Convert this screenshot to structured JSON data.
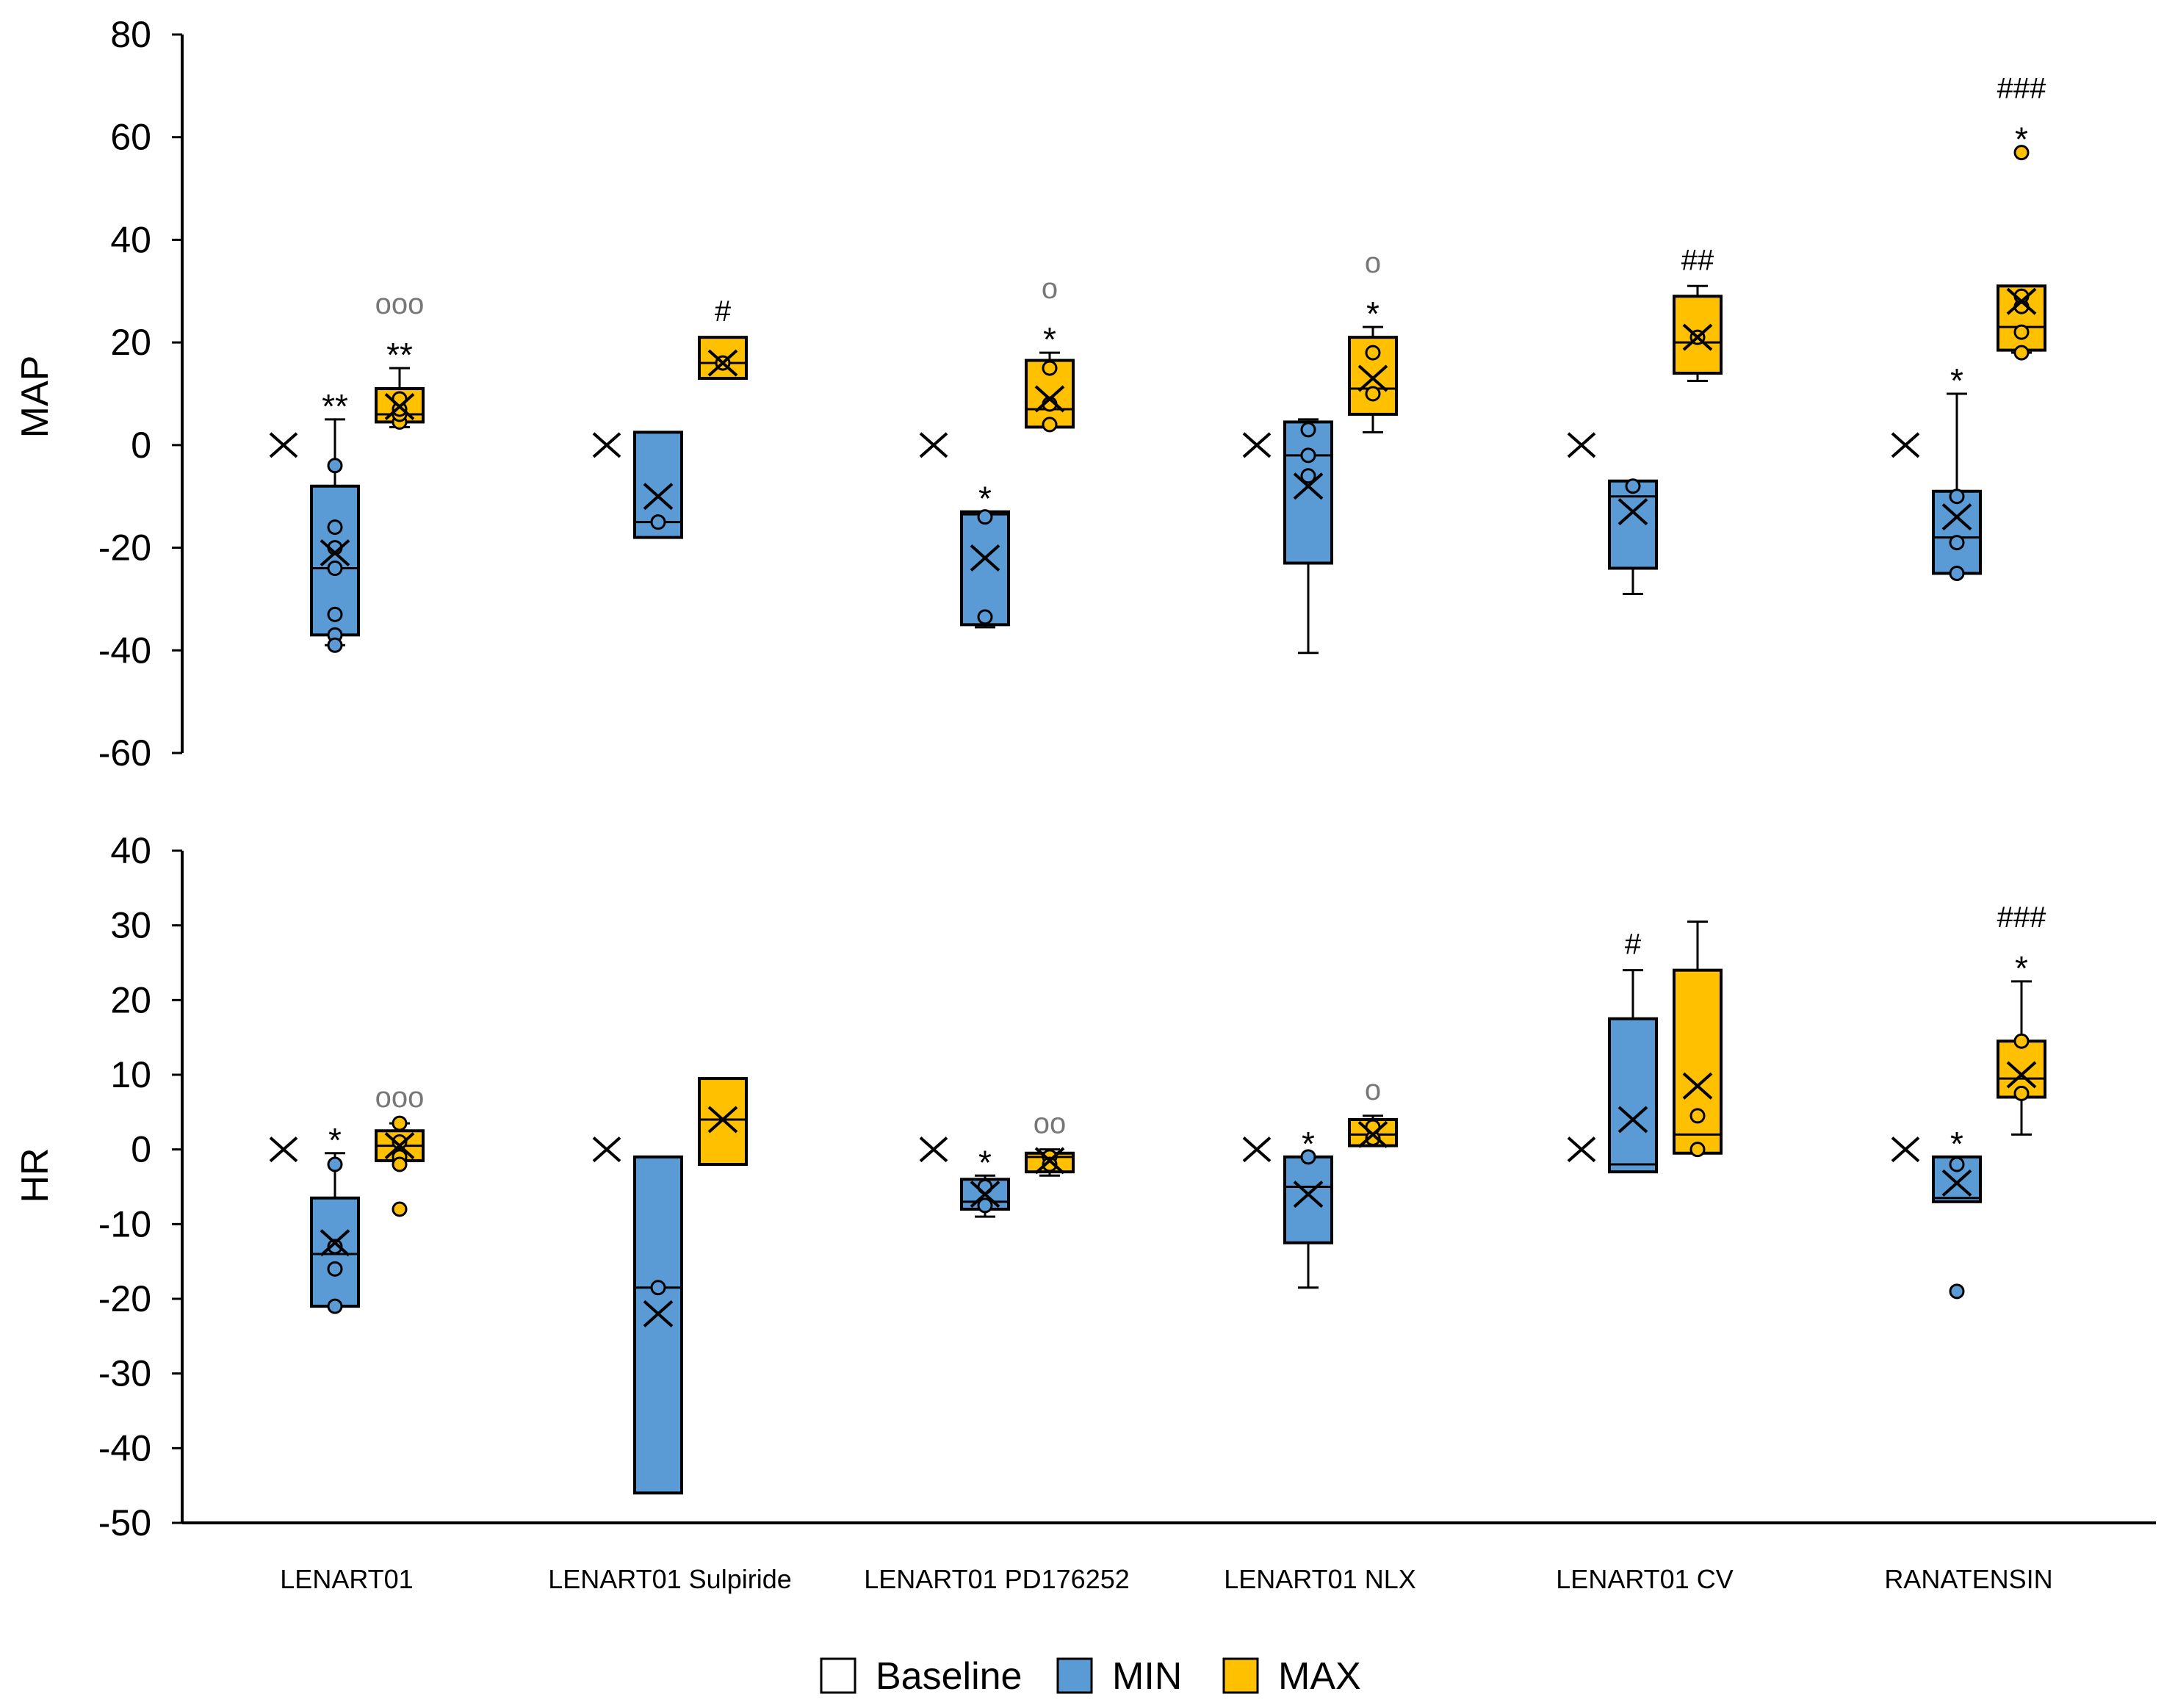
{
  "chart_data": {
    "type": "box",
    "categories": [
      "LENART01",
      "LENART01 Sulpiride",
      "LENART01 PD176252",
      "LENART01 NLX",
      "LENART01 CV",
      "RANATENSIN"
    ],
    "legend": [
      {
        "name": "Baseline",
        "color": "#ffffff"
      },
      {
        "name": "MIN",
        "color": "#5b9bd5"
      },
      {
        "name": "MAX",
        "color": "#ffc000"
      }
    ],
    "legend_position": "bottom",
    "colors": {
      "Baseline": "#ffffff",
      "MIN": "#5b9bd5",
      "MAX": "#ffc000",
      "outline": "#000000",
      "annotation_circle": "#777777"
    },
    "panels": [
      {
        "ylabel": "MAP",
        "ylim": [
          -60,
          80
        ],
        "yticks": [
          "80",
          "60",
          "40",
          "20",
          "0",
          "-20",
          "-40",
          "-60"
        ],
        "groups": [
          {
            "category": "LENART01",
            "Baseline": {
              "mean": 0
            },
            "MIN": {
              "q1": -37,
              "median": -24,
              "q3": -8,
              "wlo": -39,
              "whi": 5,
              "mean": -21,
              "points": [
                -4,
                -16,
                -20,
                -24,
                -33,
                -37,
                -39
              ]
            },
            "MAX": {
              "q1": 4.5,
              "median": 6,
              "q3": 11,
              "wlo": 3.5,
              "whi": 15,
              "mean": 7.5,
              "points": [
                4.5,
                6,
                7,
                9
              ]
            },
            "labels": {
              "MIN": [
                "**"
              ],
              "MAX": [
                "ooo",
                "**"
              ]
            }
          },
          {
            "category": "LENART01 Sulpiride",
            "Baseline": {
              "mean": 0
            },
            "MIN": {
              "q1": -18,
              "median": -15,
              "q3": 2.5,
              "wlo": -18,
              "whi": 2.5,
              "mean": -10,
              "points": [
                -15
              ]
            },
            "MAX": {
              "q1": 13,
              "median": 16,
              "q3": 21,
              "wlo": 13,
              "whi": 21,
              "mean": 16,
              "points": [
                16
              ]
            },
            "labels": {
              "MIN": [],
              "MAX": [
                "#"
              ]
            }
          },
          {
            "category": "LENART01 PD176252",
            "Baseline": {
              "mean": 0
            },
            "MIN": {
              "q1": -35,
              "median": -13.5,
              "q3": -13,
              "wlo": -35.5,
              "whi": -13,
              "mean": -22,
              "points": [
                -14,
                -33.5
              ]
            },
            "MAX": {
              "q1": 3.5,
              "median": 7,
              "q3": 16.5,
              "wlo": 3.5,
              "whi": 18,
              "mean": 9,
              "points": [
                4,
                8,
                15
              ]
            },
            "labels": {
              "MIN": [
                "*"
              ],
              "MAX": [
                "o",
                "*"
              ]
            }
          },
          {
            "category": "LENART01 NLX",
            "Baseline": {
              "mean": 0
            },
            "MIN": {
              "q1": -23,
              "median": -2,
              "q3": 4.5,
              "wlo": -40.5,
              "whi": 5,
              "mean": -8,
              "points": [
                -2,
                3,
                -6
              ]
            },
            "MAX": {
              "q1": 6,
              "median": 11,
              "q3": 21,
              "wlo": 2.5,
              "whi": 23,
              "mean": 13,
              "points": [
                10,
                18
              ]
            },
            "labels": {
              "MIN": [],
              "MAX": [
                "o",
                "*"
              ]
            }
          },
          {
            "category": "LENART01 CV",
            "Baseline": {
              "mean": 0
            },
            "MIN": {
              "q1": -24,
              "median": -10,
              "q3": -7,
              "wlo": -29,
              "whi": -7,
              "mean": -13,
              "points": [
                -8
              ]
            },
            "MAX": {
              "q1": 14,
              "median": 20,
              "q3": 29,
              "wlo": 12.5,
              "whi": 31,
              "mean": 21,
              "points": [
                21
              ]
            },
            "labels": {
              "MIN": [],
              "MAX": [
                "##"
              ]
            }
          },
          {
            "category": "RANATENSIN",
            "Baseline": {
              "mean": 0
            },
            "MIN": {
              "q1": -25,
              "median": -18,
              "q3": -9,
              "wlo": -25,
              "whi": 10,
              "mean": -14,
              "points": [
                -10,
                -19,
                -25
              ]
            },
            "MAX": {
              "q1": 18.5,
              "median": 23,
              "q3": 31,
              "wlo": 18,
              "whi": 31,
              "mean": 28,
              "points": [
                18,
                22,
                27,
                29,
                57
              ]
            },
            "labels": {
              "MIN": [
                "*"
              ],
              "MAX": [
                "###",
                "*"
              ]
            }
          }
        ]
      },
      {
        "ylabel": "HR",
        "ylim": [
          -50,
          40
        ],
        "yticks": [
          "40",
          "30",
          "20",
          "10",
          "0",
          "-10",
          "-20",
          "-30",
          "-40",
          "-50"
        ],
        "groups": [
          {
            "category": "LENART01",
            "Baseline": {
              "mean": 0
            },
            "MIN": {
              "q1": -21,
              "median": -14,
              "q3": -6.5,
              "wlo": -21,
              "whi": -0.5,
              "mean": -12.5,
              "points": [
                -2,
                -13,
                -16,
                -21
              ]
            },
            "MAX": {
              "q1": -1.5,
              "median": 0.5,
              "q3": 2.5,
              "wlo": -1.5,
              "whi": 3.5,
              "mean": 0.5,
              "points": [
                3.5,
                1,
                -1,
                -2,
                -8
              ]
            },
            "labels": {
              "MIN": [
                "*"
              ],
              "MAX": [
                "ooo"
              ]
            }
          },
          {
            "category": "LENART01 Sulpiride",
            "Baseline": {
              "mean": 0
            },
            "MIN": {
              "q1": -46,
              "median": -18.5,
              "q3": -1,
              "wlo": -46,
              "whi": -1,
              "mean": -22,
              "points": [
                -18.5
              ]
            },
            "MAX": {
              "q1": -2,
              "median": 4,
              "q3": 9.5,
              "wlo": -2,
              "whi": 9.5,
              "mean": 4,
              "points": []
            },
            "labels": {
              "MIN": [],
              "MAX": []
            }
          },
          {
            "category": "LENART01 PD176252",
            "Baseline": {
              "mean": 0
            },
            "MIN": {
              "q1": -8,
              "median": -7,
              "q3": -4,
              "wlo": -9,
              "whi": -3.5,
              "mean": -6,
              "points": [
                -5,
                -7.5
              ]
            },
            "MAX": {
              "q1": -3,
              "median": -1,
              "q3": -0.5,
              "wlo": -3.5,
              "whi": 0,
              "mean": -1.5,
              "points": [
                -1,
                -2
              ]
            },
            "labels": {
              "MIN": [
                "*"
              ],
              "MAX": [
                "oo"
              ]
            }
          },
          {
            "category": "LENART01 NLX",
            "Baseline": {
              "mean": 0
            },
            "MIN": {
              "q1": -12.5,
              "median": -5,
              "q3": -1,
              "wlo": -18.5,
              "whi": -1,
              "mean": -6,
              "points": [
                -1
              ]
            },
            "MAX": {
              "q1": 0.5,
              "median": 2,
              "q3": 4,
              "wlo": 0.5,
              "whi": 4.5,
              "mean": 2,
              "points": [
                1.5,
                3
              ]
            },
            "labels": {
              "MIN": [
                "*"
              ],
              "MAX": [
                "o"
              ]
            }
          },
          {
            "category": "LENART01 CV",
            "Baseline": {
              "mean": 0
            },
            "MIN": {
              "q1": -3,
              "median": -2,
              "q3": 17.5,
              "wlo": -3,
              "whi": 24,
              "mean": 4,
              "points": []
            },
            "MAX": {
              "q1": -0.5,
              "median": 2,
              "q3": 24,
              "wlo": -0.5,
              "whi": 30.5,
              "mean": 8.5,
              "points": [
                4.5,
                0
              ]
            },
            "labels": {
              "MIN": [
                "#"
              ],
              "MAX": []
            }
          },
          {
            "category": "RANATENSIN",
            "Baseline": {
              "mean": 0
            },
            "MIN": {
              "q1": -7,
              "median": -6.5,
              "q3": -1,
              "wlo": -7,
              "whi": -1,
              "mean": -4.5,
              "points": [
                -2,
                -19
              ]
            },
            "MAX": {
              "q1": 7,
              "median": 9.5,
              "q3": 14.5,
              "wlo": 2,
              "whi": 22.5,
              "mean": 10,
              "points": [
                14.5,
                7.5
              ]
            },
            "labels": {
              "MIN": [
                "*"
              ],
              "MAX": [
                "###",
                "*"
              ]
            }
          }
        ]
      }
    ]
  }
}
